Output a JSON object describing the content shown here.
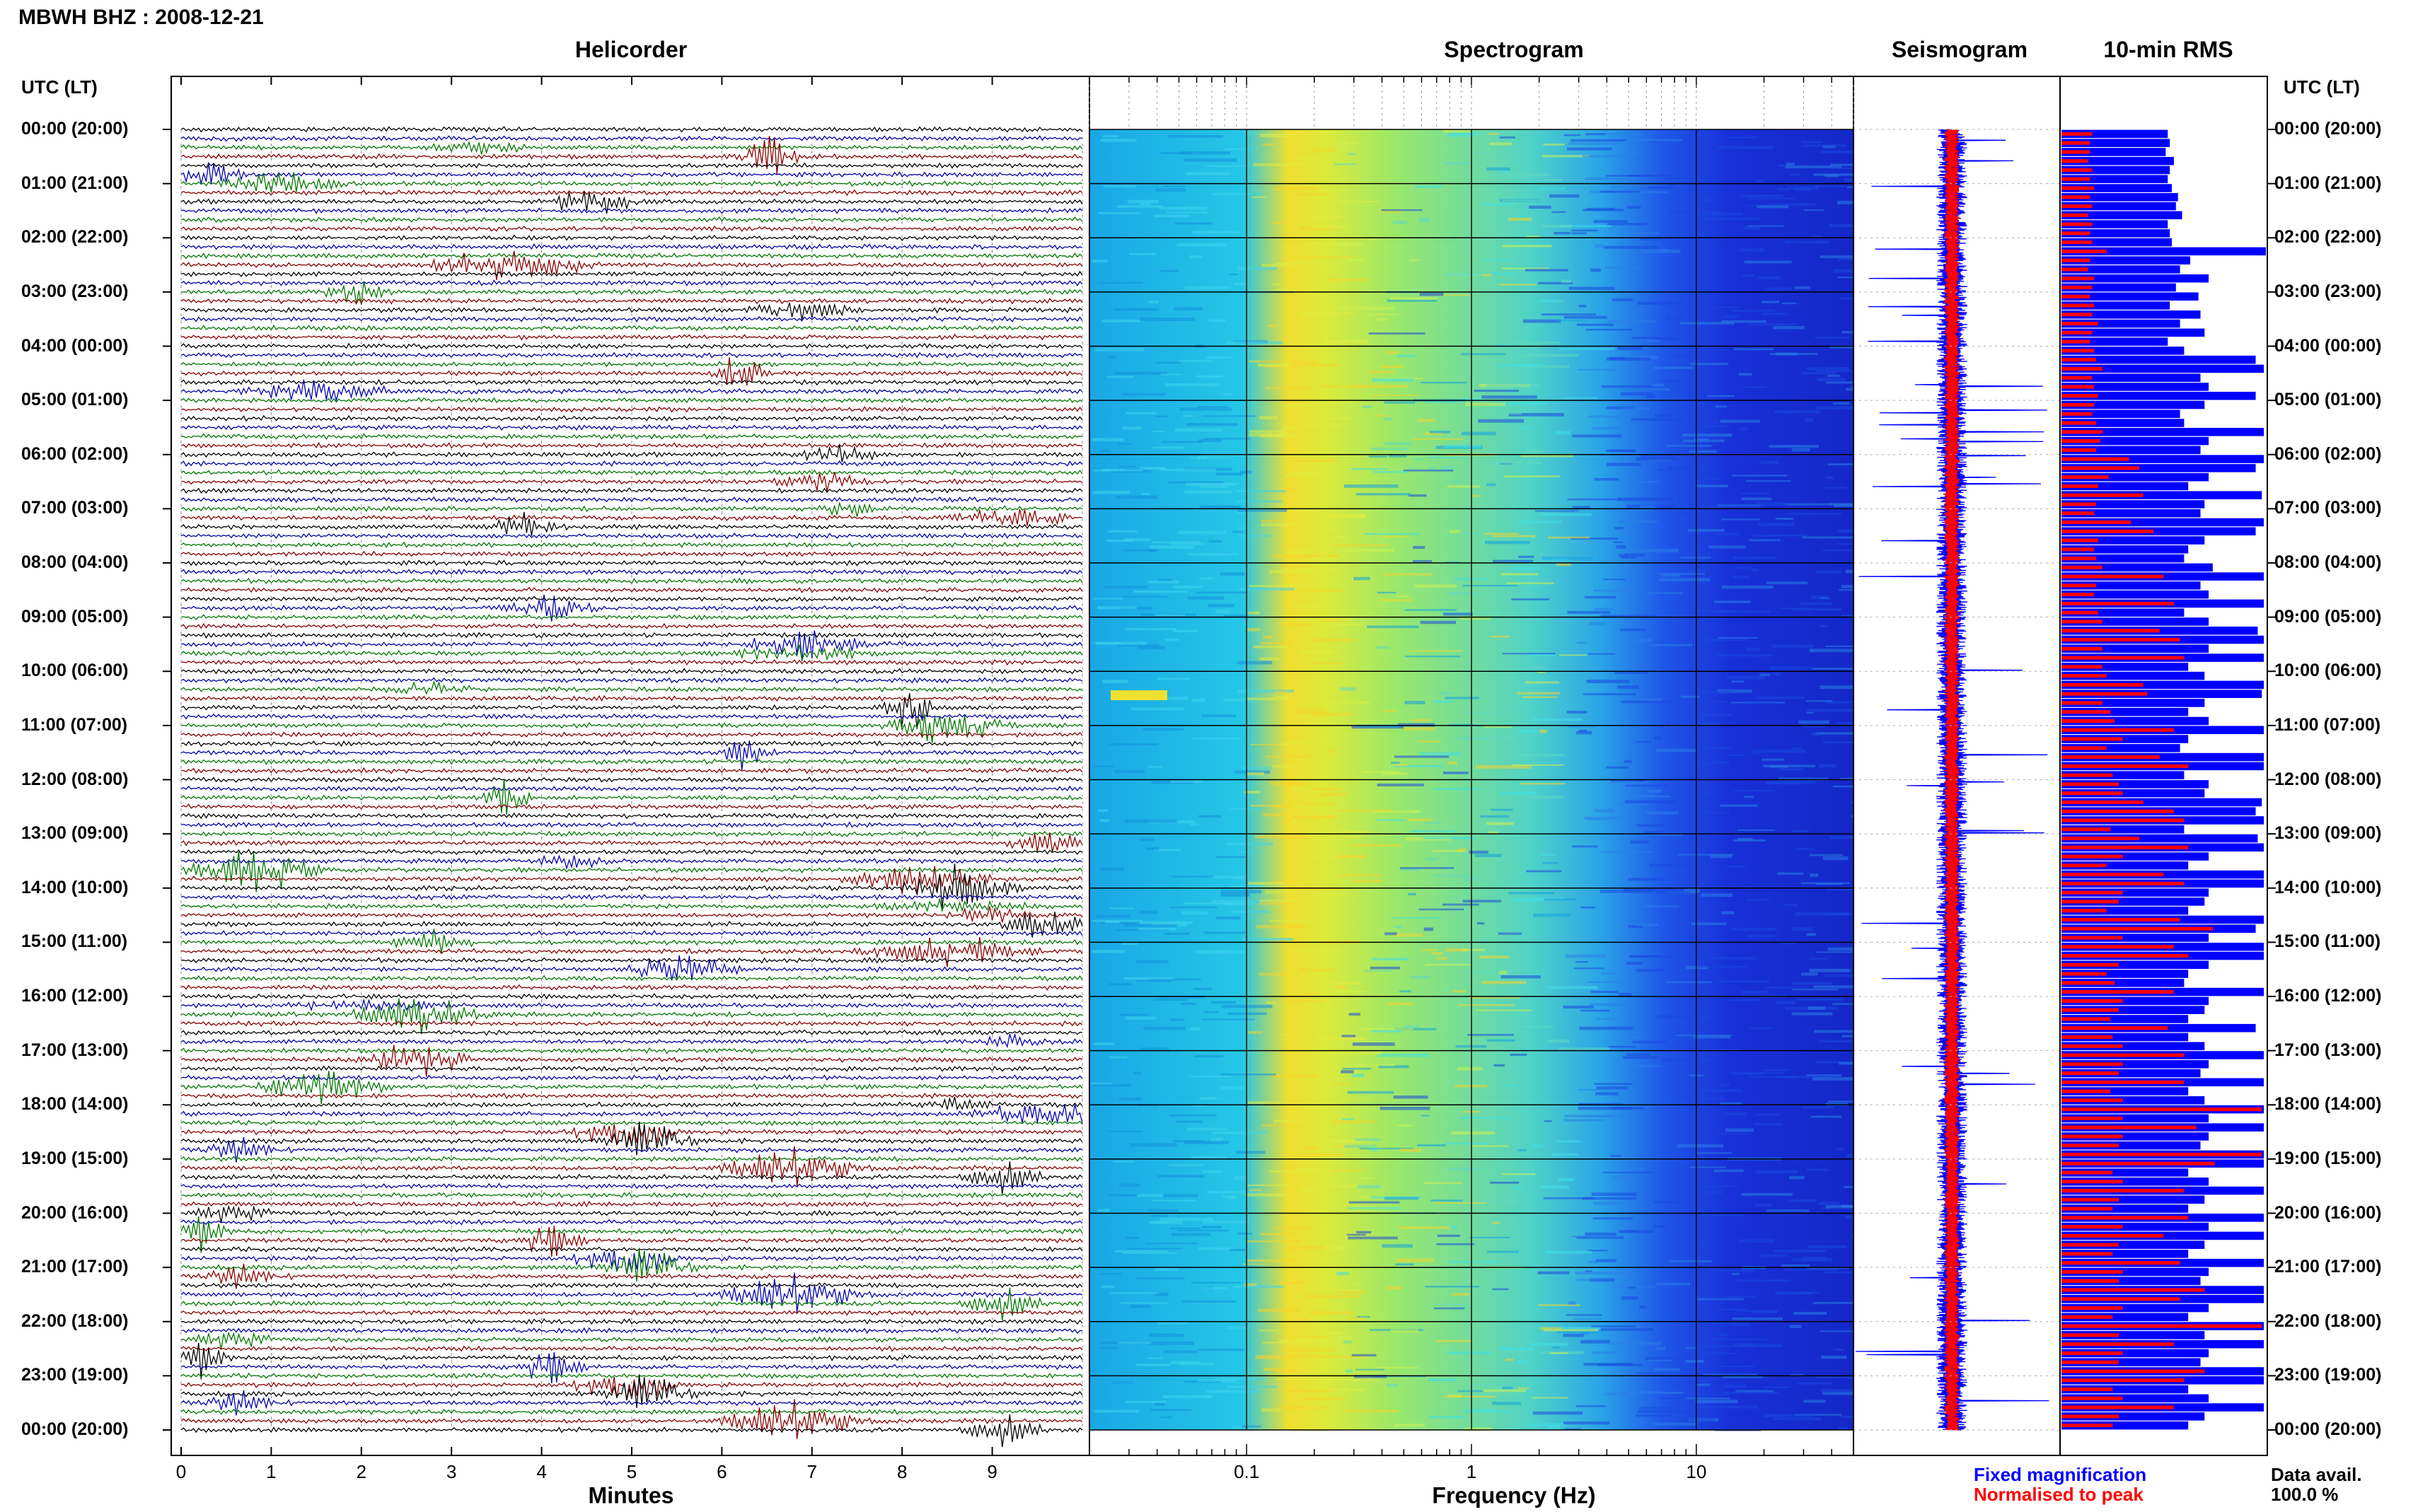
{
  "header": {
    "title": "MBWH BHZ : 2008-12-21",
    "left_col_label": "UTC (LT)",
    "right_col_label": "UTC (LT)"
  },
  "panels": {
    "helicorder": "Helicorder",
    "spectrogram": "Spectrogram",
    "seismogram": "Seismogram",
    "rms": "10-min RMS"
  },
  "time_labels": [
    "00:00 (20:00)",
    "01:00 (21:00)",
    "02:00 (22:00)",
    "03:00 (23:00)",
    "04:00 (00:00)",
    "05:00 (01:00)",
    "06:00 (02:00)",
    "07:00 (03:00)",
    "08:00 (04:00)",
    "09:00 (05:00)",
    "10:00 (06:00)",
    "11:00 (07:00)",
    "12:00 (08:00)",
    "13:00 (09:00)",
    "14:00 (10:00)",
    "15:00 (11:00)",
    "16:00 (12:00)",
    "17:00 (13:00)",
    "18:00 (14:00)",
    "19:00 (15:00)",
    "20:00 (16:00)",
    "21:00 (17:00)",
    "22:00 (18:00)",
    "23:00 (19:00)",
    "00:00 (20:00)"
  ],
  "legend": {
    "fixed": "Fixed magnification",
    "normalised": "Normalised to peak",
    "fixed_color": "#0000ff",
    "normalised_color": "#ff0000"
  },
  "data_avail": {
    "label": "Data avail.",
    "value": "100.0 %"
  },
  "colors": {
    "trace_cycle": [
      "#000000",
      "#0000aa",
      "#007700",
      "#880000"
    ],
    "rms_fixed": "#0000ff",
    "rms_norm": "#ff0000"
  },
  "chart_data": [
    {
      "type": "line",
      "name": "helicorder",
      "title": "Helicorder",
      "xlabel": "Minutes",
      "x_ticks": [
        "0",
        "1",
        "2",
        "3",
        "4",
        "5",
        "6",
        "7",
        "8",
        "9"
      ],
      "xlim": [
        0,
        10
      ],
      "ylim": [
        0,
        24
      ],
      "traces_per_hour": 6,
      "trace_color_cycle": [
        "black",
        "blue",
        "green",
        "red"
      ],
      "grid": true
    },
    {
      "type": "heatmap",
      "name": "spectrogram",
      "title": "Spectrogram",
      "xlabel": "Frequency (Hz)",
      "x_ticks": [
        "0.1",
        "1",
        "10"
      ],
      "x_scale": "log",
      "xlim": [
        0.02,
        50
      ],
      "ylim": [
        0,
        24
      ]
    },
    {
      "type": "line",
      "name": "seismogram",
      "title": "Seismogram",
      "series": [
        {
          "name": "Fixed magnification",
          "color": "#0000ff"
        },
        {
          "name": "Normalised to peak",
          "color": "#ff0000"
        }
      ],
      "ylim": [
        0,
        24
      ]
    },
    {
      "type": "bar",
      "name": "rms",
      "title": "10-min RMS",
      "orientation": "horizontal",
      "ylim": [
        0,
        24
      ],
      "series": [
        {
          "name": "Fixed magnification",
          "color": "#0000ff",
          "values": [
            0.52,
            0.53,
            0.51,
            0.55,
            0.53,
            0.52,
            0.54,
            0.57,
            0.56,
            0.59,
            0.52,
            0.53,
            0.54,
            1.0,
            0.63,
            0.58,
            0.72,
            0.56,
            0.67,
            0.53,
            0.68,
            0.58,
            0.7,
            0.52,
            0.6,
            0.95,
            0.99,
            0.68,
            0.72,
            0.95,
            0.7,
            0.58,
            0.6,
            0.99,
            0.72,
            0.68,
            0.99,
            0.95,
            0.72,
            0.62,
            0.98,
            0.7,
            0.68,
            0.99,
            0.95,
            0.7,
            0.62,
            0.6,
            0.74,
            0.99,
            0.68,
            0.72,
            0.99,
            0.6,
            0.72,
            0.96,
            0.99,
            0.72,
            0.99,
            0.62,
            0.7,
            0.99,
            0.98,
            0.7,
            0.62,
            0.72,
            0.99,
            0.62,
            0.58,
            0.99,
            0.99,
            0.6,
            0.72,
            0.7,
            0.98,
            0.95,
            0.99,
            0.6,
            0.96,
            0.99,
            0.72,
            0.62,
            0.99,
            0.99,
            0.72,
            0.7,
            0.62,
            0.99,
            0.95,
            0.72,
            0.99,
            0.99,
            0.72,
            0.62,
            0.6,
            0.99,
            0.72,
            0.7,
            0.62,
            0.95,
            0.62,
            0.7,
            0.99,
            0.72,
            0.68,
            0.99,
            0.62,
            0.7,
            0.99,
            0.72,
            0.99,
            0.72,
            0.68,
            0.99,
            0.99,
            0.62,
            0.72,
            0.99,
            0.7,
            0.62,
            0.99,
            0.72,
            0.99,
            0.7,
            0.62,
            0.99,
            0.72,
            0.68,
            0.99,
            0.99,
            0.72,
            0.62,
            0.99,
            0.7,
            0.99,
            0.72,
            0.68,
            0.99,
            0.99,
            0.62,
            0.72,
            0.99,
            0.7,
            0.62
          ]
        },
        {
          "name": "Normalised to peak",
          "color": "#ff0000",
          "values": [
            0.15,
            0.14,
            0.14,
            0.13,
            0.15,
            0.14,
            0.16,
            0.14,
            0.15,
            0.13,
            0.15,
            0.14,
            0.15,
            0.22,
            0.14,
            0.13,
            0.16,
            0.15,
            0.14,
            0.16,
            0.15,
            0.18,
            0.15,
            0.14,
            0.16,
            0.17,
            0.2,
            0.15,
            0.16,
            0.18,
            0.16,
            0.15,
            0.17,
            0.2,
            0.19,
            0.17,
            0.33,
            0.38,
            0.23,
            0.18,
            0.4,
            0.17,
            0.16,
            0.34,
            0.45,
            0.18,
            0.16,
            0.17,
            0.2,
            0.5,
            0.17,
            0.16,
            0.55,
            0.18,
            0.2,
            0.48,
            0.58,
            0.2,
            0.6,
            0.2,
            0.22,
            0.4,
            0.42,
            0.2,
            0.24,
            0.26,
            0.55,
            0.3,
            0.22,
            0.48,
            0.62,
            0.25,
            0.28,
            0.3,
            0.4,
            0.55,
            0.6,
            0.24,
            0.38,
            0.62,
            0.3,
            0.22,
            0.5,
            0.6,
            0.3,
            0.28,
            0.22,
            0.58,
            0.74,
            0.3,
            0.55,
            0.62,
            0.28,
            0.22,
            0.26,
            0.55,
            0.3,
            0.28,
            0.24,
            0.52,
            0.25,
            0.3,
            0.6,
            0.3,
            0.28,
            0.6,
            0.24,
            0.3,
            0.98,
            0.3,
            0.66,
            0.3,
            0.28,
            0.98,
            0.75,
            0.25,
            0.3,
            0.6,
            0.28,
            0.25,
            0.62,
            0.3,
            0.5,
            0.28,
            0.25,
            0.58,
            0.3,
            0.28,
            0.7,
            0.58,
            0.3,
            0.25,
            0.98,
            0.28,
            0.55,
            0.3,
            0.28,
            0.7,
            0.6,
            0.25,
            0.3,
            0.55,
            0.28,
            0.25
          ]
        }
      ]
    }
  ]
}
